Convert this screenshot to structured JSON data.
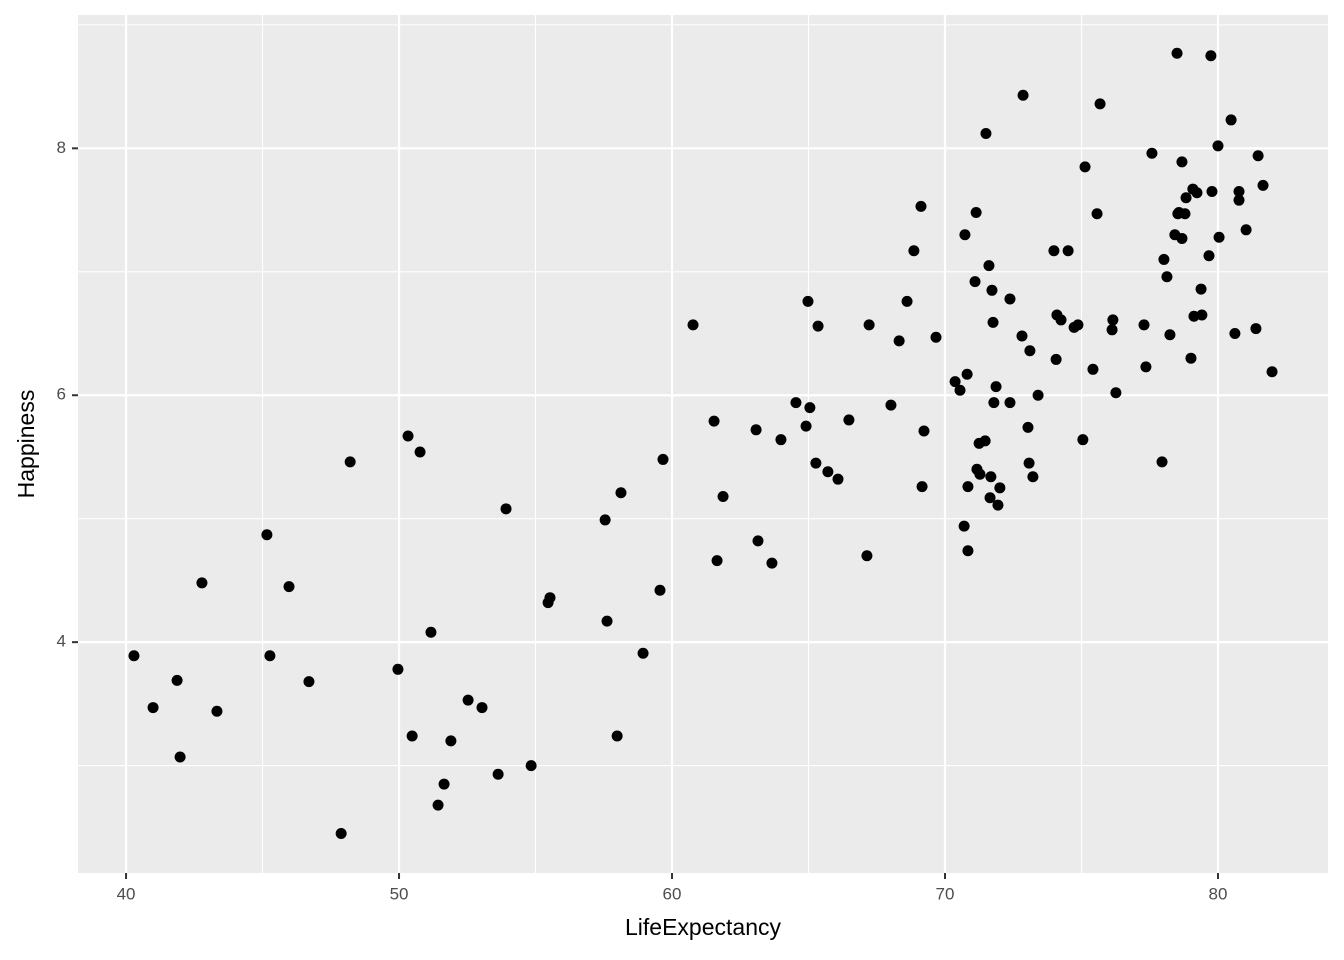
{
  "chart_data": {
    "type": "scatter",
    "x_label": "LifeExpectancy",
    "y_label": "Happiness",
    "color": "#000000",
    "grid": true,
    "xlim": [
      38.24,
      84.03
    ],
    "ylim": [
      2.13,
      9.08
    ],
    "xticks": [
      40,
      50,
      60,
      70,
      80
    ],
    "yticks": [
      4,
      6,
      8
    ],
    "x": [
      40.29,
      40.99,
      41.87,
      41.98,
      42.78,
      43.33,
      45.16,
      45.27,
      45.97,
      46.7,
      47.88,
      48.21,
      49.96,
      50.33,
      50.48,
      50.77,
      51.17,
      51.43,
      51.65,
      51.9,
      52.53,
      53.04,
      53.63,
      53.92,
      54.84,
      55.46,
      55.53,
      57.55,
      57.62,
      57.99,
      58.13,
      58.94,
      59.56,
      59.67,
      60.77,
      61.54,
      61.65,
      61.87,
      63.08,
      63.15,
      63.66,
      63.99,
      64.54,
      64.91,
      64.98,
      65.05,
      65.27,
      65.35,
      65.71,
      66.08,
      66.48,
      67.14,
      67.22,
      68.02,
      68.32,
      68.61,
      68.86,
      69.12,
      69.16,
      69.23,
      69.67,
      70.37,
      70.55,
      70.7,
      70.73,
      70.81,
      70.84,
      70.84,
      71.1,
      71.14,
      71.17,
      71.25,
      71.28,
      71.47,
      71.5,
      71.61,
      71.68,
      71.65,
      71.72,
      71.76,
      71.79,
      71.87,
      71.94,
      72.01,
      72.38,
      72.38,
      72.82,
      72.86,
      73.04,
      73.08,
      73.11,
      73.22,
      73.41,
      73.99,
      74.07,
      74.1,
      74.25,
      74.51,
      74.73,
      74.87,
      75.05,
      75.13,
      75.42,
      75.57,
      75.68,
      76.12,
      76.15,
      76.26,
      77.29,
      77.36,
      77.58,
      77.95,
      78.02,
      78.13,
      78.24,
      78.42,
      78.5,
      78.53,
      78.57,
      78.68,
      78.68,
      78.79,
      78.83,
      79.01,
      79.08,
      79.12,
      79.23,
      79.38,
      79.41,
      79.67,
      79.74,
      79.78,
      80.0,
      80.04,
      80.48,
      80.62,
      80.77,
      80.77,
      81.03,
      81.39,
      81.47,
      81.65,
      81.98
    ],
    "values": [
      3.89,
      3.47,
      3.69,
      3.07,
      4.48,
      3.44,
      4.87,
      3.89,
      4.45,
      3.68,
      2.45,
      5.46,
      3.78,
      5.67,
      3.24,
      5.54,
      4.08,
      2.68,
      2.85,
      3.2,
      3.53,
      3.47,
      2.93,
      5.08,
      3.0,
      4.32,
      4.36,
      4.99,
      4.17,
      3.24,
      5.21,
      3.91,
      4.42,
      5.48,
      6.57,
      5.79,
      4.66,
      5.18,
      5.72,
      4.82,
      4.64,
      5.64,
      5.94,
      5.75,
      6.76,
      5.9,
      5.45,
      6.56,
      5.38,
      5.32,
      5.8,
      4.7,
      6.57,
      5.92,
      6.44,
      6.76,
      7.17,
      7.53,
      5.26,
      5.71,
      6.47,
      6.11,
      6.04,
      4.94,
      7.3,
      6.17,
      4.74,
      5.26,
      6.92,
      7.48,
      5.4,
      5.61,
      5.36,
      5.63,
      8.12,
      7.05,
      5.34,
      5.17,
      6.85,
      6.59,
      5.94,
      6.07,
      5.11,
      5.25,
      6.78,
      5.94,
      6.48,
      8.43,
      5.74,
      5.45,
      6.36,
      5.34,
      6.0,
      7.17,
      6.29,
      6.65,
      6.61,
      7.17,
      6.55,
      6.57,
      5.64,
      7.85,
      6.21,
      7.47,
      8.36,
      6.53,
      6.61,
      6.02,
      6.57,
      6.23,
      7.96,
      5.46,
      7.1,
      6.96,
      6.49,
      7.3,
      8.77,
      7.47,
      7.48,
      7.27,
      7.89,
      7.47,
      7.6,
      6.3,
      7.67,
      6.64,
      7.64,
      6.86,
      6.65,
      7.13,
      8.75,
      7.65,
      8.02,
      7.28,
      8.23,
      6.5,
      7.65,
      7.58,
      7.34,
      6.54,
      7.94,
      7.7,
      6.19
    ]
  }
}
